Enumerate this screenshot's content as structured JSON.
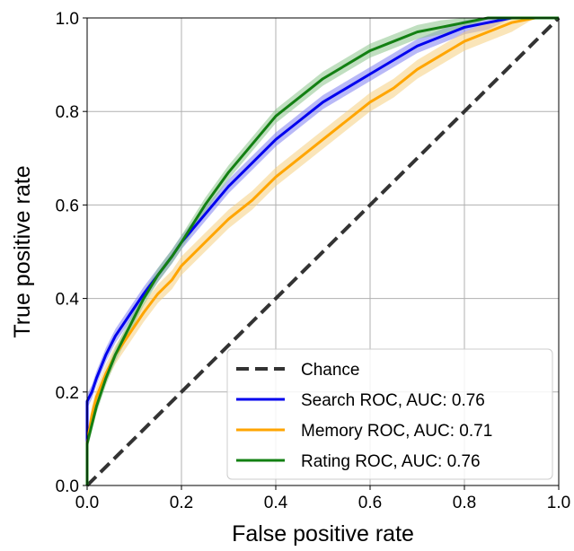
{
  "chart_data": {
    "type": "line",
    "title": "",
    "xlabel": "False positive rate",
    "ylabel": "True positive rate",
    "xlim": [
      0,
      1
    ],
    "ylim": [
      0,
      1
    ],
    "x_ticks": [
      "0.0",
      "0.2",
      "0.4",
      "0.6",
      "0.8",
      "1.0"
    ],
    "y_ticks": [
      "0.0",
      "0.2",
      "0.4",
      "0.6",
      "0.8",
      "1.0"
    ],
    "grid": true,
    "legend_position": "bottom-right",
    "chance": {
      "name": "Chance",
      "color": "#333333",
      "style": "dashed",
      "x": [
        0,
        1
      ],
      "y": [
        0,
        1
      ]
    },
    "series": [
      {
        "name": "Search ROC, AUC: 0.76",
        "color": "#0000ee",
        "band_color": "#8080f0",
        "x": [
          0,
          0,
          0.01,
          0.02,
          0.04,
          0.06,
          0.08,
          0.1,
          0.12,
          0.15,
          0.18,
          0.2,
          0.25,
          0.3,
          0.35,
          0.4,
          0.45,
          0.5,
          0.55,
          0.6,
          0.65,
          0.7,
          0.75,
          0.8,
          0.85,
          0.9,
          0.95,
          1.0
        ],
        "y": [
          0,
          0.18,
          0.2,
          0.23,
          0.28,
          0.32,
          0.35,
          0.38,
          0.41,
          0.45,
          0.49,
          0.52,
          0.58,
          0.64,
          0.69,
          0.74,
          0.78,
          0.82,
          0.85,
          0.88,
          0.91,
          0.94,
          0.96,
          0.98,
          0.99,
          1.0,
          1.0,
          1.0
        ],
        "band": 0.015
      },
      {
        "name": "Memory ROC, AUC: 0.71",
        "color": "#ffa500",
        "band_color": "#f6cf80",
        "x": [
          0,
          0,
          0.01,
          0.02,
          0.04,
          0.06,
          0.08,
          0.1,
          0.12,
          0.15,
          0.18,
          0.2,
          0.25,
          0.3,
          0.35,
          0.4,
          0.45,
          0.5,
          0.55,
          0.6,
          0.65,
          0.7,
          0.75,
          0.8,
          0.85,
          0.9,
          0.95,
          1.0
        ],
        "y": [
          0,
          0.09,
          0.15,
          0.19,
          0.24,
          0.28,
          0.31,
          0.34,
          0.37,
          0.41,
          0.44,
          0.47,
          0.52,
          0.57,
          0.61,
          0.66,
          0.7,
          0.74,
          0.78,
          0.82,
          0.85,
          0.89,
          0.92,
          0.95,
          0.97,
          0.99,
          1.0,
          1.0
        ],
        "band": 0.02
      },
      {
        "name": "Rating ROC, AUC: 0.76",
        "color": "#138013",
        "band_color": "#8cc48c",
        "x": [
          0,
          0,
          0.01,
          0.02,
          0.04,
          0.06,
          0.08,
          0.1,
          0.12,
          0.15,
          0.18,
          0.2,
          0.25,
          0.3,
          0.35,
          0.4,
          0.45,
          0.5,
          0.55,
          0.6,
          0.65,
          0.7,
          0.75,
          0.8,
          0.85,
          0.9,
          0.95,
          1.0
        ],
        "y": [
          0,
          0.09,
          0.13,
          0.17,
          0.23,
          0.28,
          0.32,
          0.36,
          0.4,
          0.45,
          0.49,
          0.52,
          0.6,
          0.67,
          0.73,
          0.79,
          0.83,
          0.87,
          0.9,
          0.93,
          0.95,
          0.97,
          0.98,
          0.99,
          1.0,
          1.0,
          1.0,
          1.0
        ],
        "band": 0.015
      }
    ]
  }
}
